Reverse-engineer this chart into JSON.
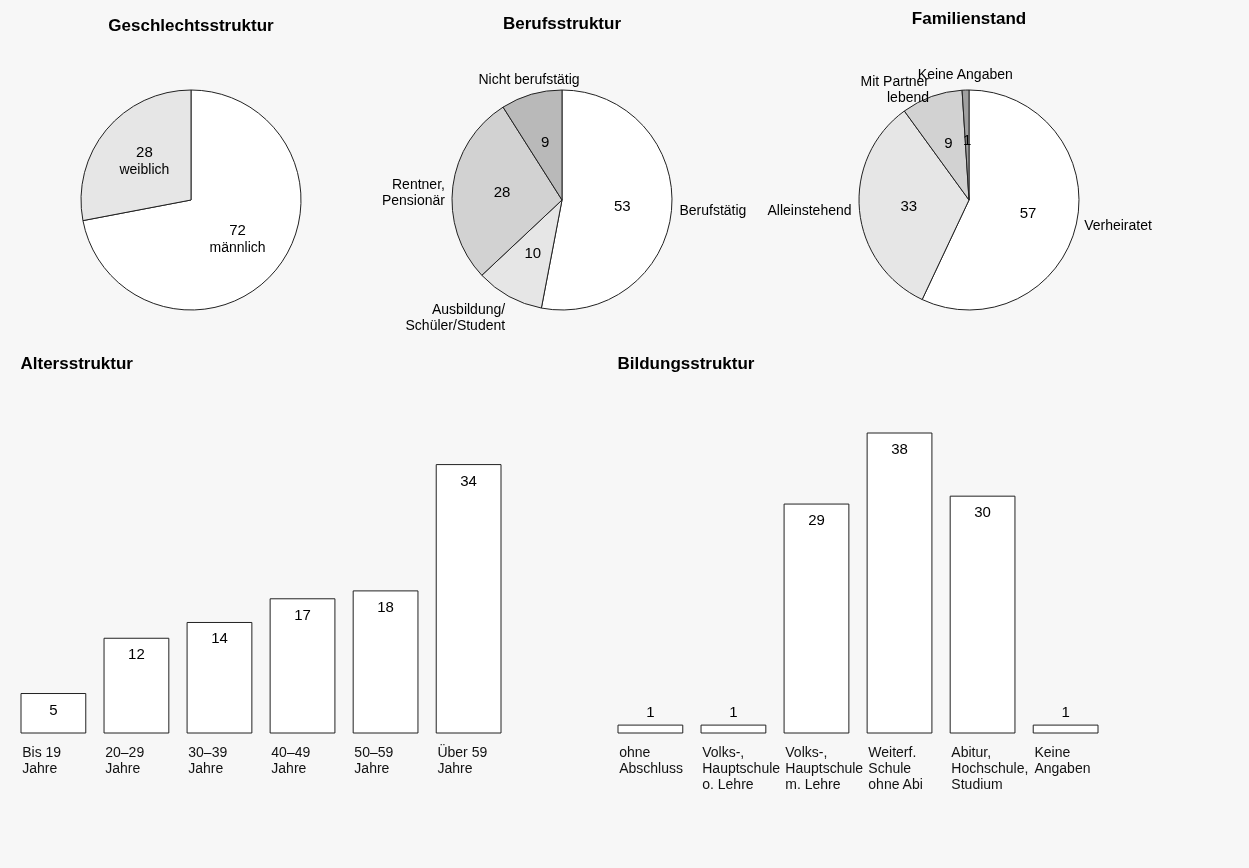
{
  "chart_data": [
    {
      "type": "pie",
      "title": "Geschlechtsstruktur",
      "categories": [
        "männlich",
        "weiblich"
      ],
      "values": [
        72,
        28
      ],
      "colors": [
        "#ffffff",
        "#e6e6e6"
      ],
      "data_labels": true
    },
    {
      "type": "pie",
      "title": "Berufsstruktur",
      "categories": [
        "Berufstätig",
        "Ausbildung/\nSchüler/Student",
        "Rentner,\nPensionär",
        "Nicht berufstätig"
      ],
      "values": [
        53,
        10,
        28,
        9
      ],
      "colors": [
        "#ffffff",
        "#e6e6e6",
        "#d2d2d2",
        "#b9b9b9"
      ],
      "data_labels": true
    },
    {
      "type": "pie",
      "title": "Familienstand",
      "categories": [
        "Verheiratet",
        "Alleinstehend",
        "Mit Partner\nlebend",
        "Keine Angaben"
      ],
      "values": [
        57,
        33,
        9,
        1
      ],
      "colors": [
        "#ffffff",
        "#e6e6e6",
        "#d2d2d2",
        "#a0a0a0"
      ],
      "data_labels": true
    },
    {
      "type": "bar",
      "title": "Altersstruktur",
      "categories": [
        "Bis 19\nJahre",
        "20–29\nJahre",
        "30–39\nJahre",
        "40–49\nJahre",
        "50–59\nJahre",
        "Über 59\nJahre"
      ],
      "values": [
        5,
        12,
        14,
        17,
        18,
        34
      ],
      "color": "#ffffff",
      "data_labels": true
    },
    {
      "type": "bar",
      "title": "Bildungsstruktur",
      "categories": [
        "ohne\nAbschluss",
        "Volks-,\nHauptschule\no. Lehre",
        "Volks-,\nHauptschule\nm. Lehre",
        "Weiterf.\nSchule\nohne Abi",
        "Abitur,\nHochschule,\nStudium",
        "Keine\nAngaben"
      ],
      "values": [
        1,
        1,
        29,
        38,
        30,
        1
      ],
      "color": "#ffffff",
      "data_labels": true
    }
  ]
}
